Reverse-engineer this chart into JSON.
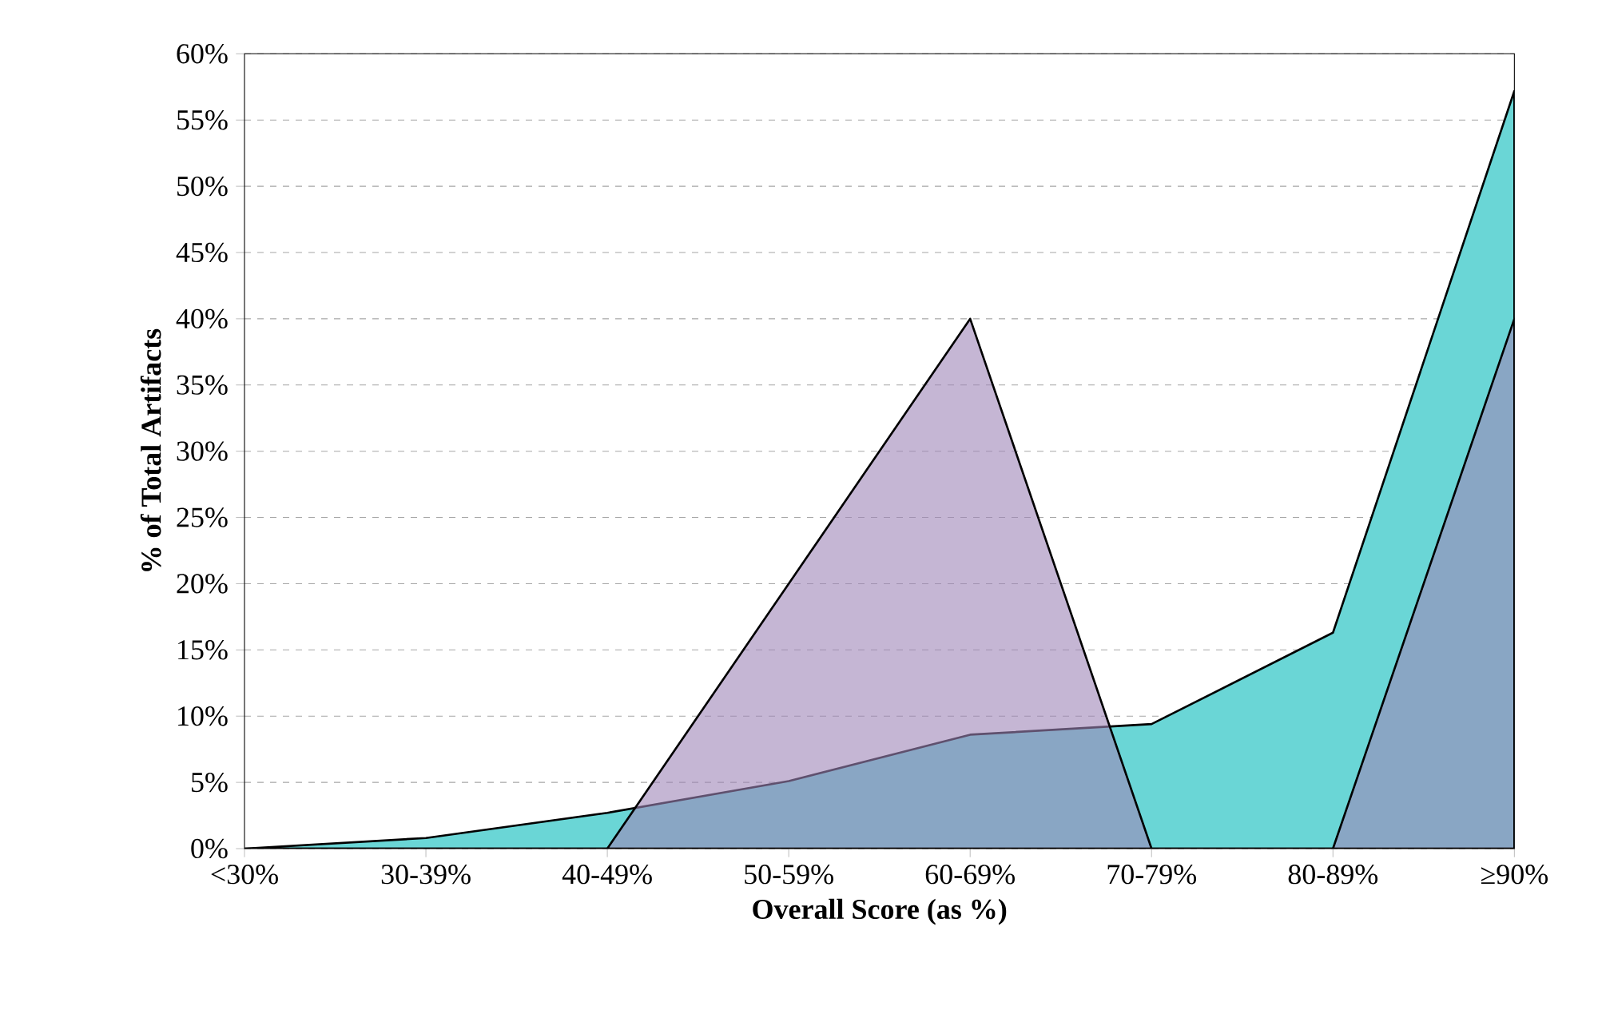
{
  "chart_data": {
    "type": "area",
    "xlabel": "Overall Score (as %)",
    "ylabel": "% of Total Artifacts",
    "categories": [
      "<30%",
      "30-39%",
      "40-49%",
      "50-59%",
      "60-69%",
      "70-79%",
      "80-89%",
      "≥90%"
    ],
    "series": [
      {
        "color": "#6ad6d6",
        "values": [
          0,
          0.8,
          2.7,
          5.1,
          8.6,
          9.4,
          16.3,
          57.2
        ]
      },
      {
        "color": "#9e85b7",
        "values": [
          0,
          0,
          0,
          20,
          40,
          0,
          0,
          40
        ]
      }
    ],
    "ylim": [
      0,
      60
    ],
    "yticks": [
      {
        "value": 0,
        "label": "0%"
      },
      {
        "value": 5,
        "label": "5%"
      },
      {
        "value": 10,
        "label": "10%"
      },
      {
        "value": 15,
        "label": "15%"
      },
      {
        "value": 20,
        "label": "20%"
      },
      {
        "value": 25,
        "label": "25%"
      },
      {
        "value": 30,
        "label": "30%"
      },
      {
        "value": 35,
        "label": "35%"
      },
      {
        "value": 40,
        "label": "40%"
      },
      {
        "value": 45,
        "label": "45%"
      },
      {
        "value": 50,
        "label": "50%"
      },
      {
        "value": 55,
        "label": "55%"
      },
      {
        "value": 60,
        "label": "60%"
      }
    ],
    "grid": "y"
  }
}
